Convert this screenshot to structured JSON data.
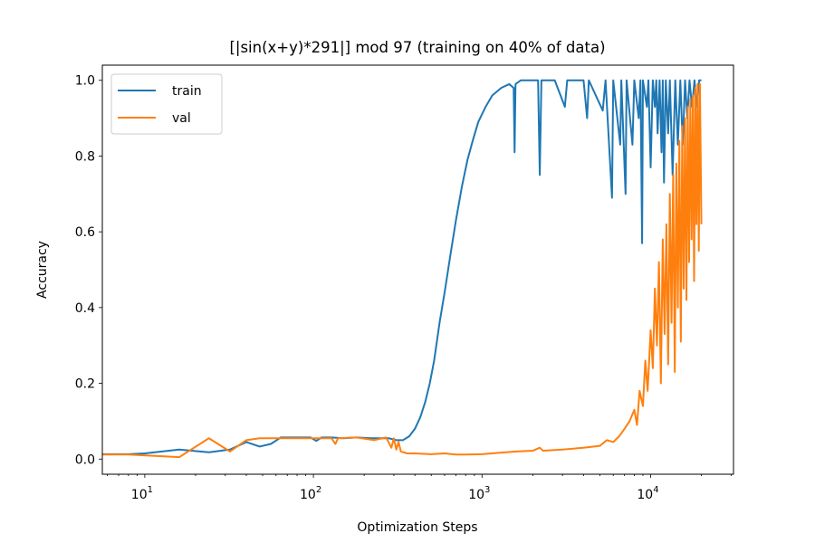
{
  "chart_data": {
    "type": "line",
    "title": "[|sin(x+y)*291|] mod 97 (training on 40% of data)",
    "xlabel": "Optimization Steps",
    "ylabel": "Accuracy",
    "xscale": "log",
    "xlim": [
      5.6,
      31000
    ],
    "ylim": [
      -0.04,
      1.04
    ],
    "grid": false,
    "legend_position": "top-left",
    "x_ticks": [
      {
        "value": 10,
        "base": "10",
        "exp": "1"
      },
      {
        "value": 100,
        "base": "10",
        "exp": "2"
      },
      {
        "value": 1000,
        "base": "10",
        "exp": "3"
      },
      {
        "value": 10000,
        "base": "10",
        "exp": "4"
      }
    ],
    "y_ticks": [
      {
        "value": 0.0,
        "label": "0.0"
      },
      {
        "value": 0.2,
        "label": "0.2"
      },
      {
        "value": 0.4,
        "label": "0.4"
      },
      {
        "value": 0.6,
        "label": "0.6"
      },
      {
        "value": 0.8,
        "label": "0.8"
      },
      {
        "value": 1.0,
        "label": "1.0"
      }
    ],
    "series": [
      {
        "name": "train",
        "color": "#1f77b4",
        "points": [
          [
            5.6,
            0.013
          ],
          [
            8,
            0.013
          ],
          [
            10,
            0.015
          ],
          [
            16,
            0.025
          ],
          [
            24,
            0.018
          ],
          [
            32,
            0.025
          ],
          [
            40,
            0.045
          ],
          [
            48,
            0.033
          ],
          [
            56,
            0.04
          ],
          [
            64,
            0.057
          ],
          [
            80,
            0.057
          ],
          [
            96,
            0.057
          ],
          [
            104,
            0.048
          ],
          [
            112,
            0.057
          ],
          [
            128,
            0.057
          ],
          [
            150,
            0.055
          ],
          [
            180,
            0.057
          ],
          [
            220,
            0.055
          ],
          [
            280,
            0.055
          ],
          [
            310,
            0.05
          ],
          [
            340,
            0.05
          ],
          [
            370,
            0.06
          ],
          [
            400,
            0.08
          ],
          [
            430,
            0.11
          ],
          [
            460,
            0.15
          ],
          [
            490,
            0.2
          ],
          [
            520,
            0.26
          ],
          [
            560,
            0.36
          ],
          [
            600,
            0.44
          ],
          [
            650,
            0.54
          ],
          [
            700,
            0.63
          ],
          [
            760,
            0.72
          ],
          [
            820,
            0.79
          ],
          [
            880,
            0.84
          ],
          [
            950,
            0.89
          ],
          [
            1050,
            0.93
          ],
          [
            1150,
            0.96
          ],
          [
            1300,
            0.98
          ],
          [
            1450,
            0.99
          ],
          [
            1540,
            0.98
          ],
          [
            1560,
            0.81
          ],
          [
            1580,
            0.99
          ],
          [
            1700,
            1.0
          ],
          [
            1900,
            1.0
          ],
          [
            2150,
            1.0
          ],
          [
            2200,
            0.75
          ],
          [
            2250,
            1.0
          ],
          [
            2700,
            1.0
          ],
          [
            3100,
            0.93
          ],
          [
            3200,
            1.0
          ],
          [
            4000,
            1.0
          ],
          [
            4200,
            0.9
          ],
          [
            4300,
            1.0
          ],
          [
            5200,
            0.92
          ],
          [
            5400,
            1.0
          ],
          [
            5900,
            0.69
          ],
          [
            6000,
            1.0
          ],
          [
            6600,
            0.83
          ],
          [
            6700,
            1.0
          ],
          [
            7100,
            0.7
          ],
          [
            7200,
            1.0
          ],
          [
            7800,
            0.83
          ],
          [
            8000,
            1.0
          ],
          [
            8500,
            0.9
          ],
          [
            8700,
            1.0
          ],
          [
            8900,
            0.57
          ],
          [
            9000,
            1.0
          ],
          [
            9500,
            0.93
          ],
          [
            9700,
            1.0
          ],
          [
            10000,
            0.77
          ],
          [
            10300,
            1.0
          ],
          [
            10600,
            0.93
          ],
          [
            10800,
            1.0
          ],
          [
            11000,
            0.86
          ],
          [
            11300,
            1.0
          ],
          [
            11600,
            0.81
          ],
          [
            11800,
            1.0
          ],
          [
            12000,
            0.73
          ],
          [
            12300,
            1.0
          ],
          [
            12700,
            0.86
          ],
          [
            13000,
            1.0
          ],
          [
            13500,
            0.75
          ],
          [
            14000,
            1.0
          ],
          [
            14500,
            0.83
          ],
          [
            15000,
            1.0
          ],
          [
            15500,
            0.83
          ],
          [
            16000,
            1.0
          ],
          [
            16500,
            0.9
          ],
          [
            17000,
            1.0
          ],
          [
            17600,
            0.93
          ],
          [
            18200,
            1.0
          ],
          [
            18800,
            0.93
          ],
          [
            19400,
            1.0
          ],
          [
            20000,
            1.0
          ]
        ]
      },
      {
        "name": "val",
        "color": "#ff7f0e",
        "points": [
          [
            5.6,
            0.012
          ],
          [
            8,
            0.012
          ],
          [
            16,
            0.005
          ],
          [
            24,
            0.055
          ],
          [
            32,
            0.02
          ],
          [
            40,
            0.05
          ],
          [
            48,
            0.055
          ],
          [
            64,
            0.055
          ],
          [
            96,
            0.055
          ],
          [
            128,
            0.055
          ],
          [
            135,
            0.04
          ],
          [
            140,
            0.055
          ],
          [
            180,
            0.057
          ],
          [
            230,
            0.05
          ],
          [
            270,
            0.057
          ],
          [
            290,
            0.03
          ],
          [
            300,
            0.055
          ],
          [
            310,
            0.025
          ],
          [
            320,
            0.045
          ],
          [
            330,
            0.02
          ],
          [
            360,
            0.015
          ],
          [
            400,
            0.015
          ],
          [
            500,
            0.013
          ],
          [
            600,
            0.015
          ],
          [
            700,
            0.012
          ],
          [
            800,
            0.012
          ],
          [
            1000,
            0.013
          ],
          [
            1300,
            0.017
          ],
          [
            1600,
            0.02
          ],
          [
            2000,
            0.022
          ],
          [
            2200,
            0.03
          ],
          [
            2300,
            0.022
          ],
          [
            3000,
            0.025
          ],
          [
            4000,
            0.03
          ],
          [
            5000,
            0.035
          ],
          [
            5500,
            0.05
          ],
          [
            6000,
            0.045
          ],
          [
            6500,
            0.06
          ],
          [
            7000,
            0.08
          ],
          [
            7500,
            0.1
          ],
          [
            8000,
            0.13
          ],
          [
            8300,
            0.09
          ],
          [
            8600,
            0.18
          ],
          [
            9000,
            0.14
          ],
          [
            9300,
            0.26
          ],
          [
            9600,
            0.18
          ],
          [
            10000,
            0.34
          ],
          [
            10300,
            0.24
          ],
          [
            10600,
            0.45
          ],
          [
            10900,
            0.3
          ],
          [
            11200,
            0.52
          ],
          [
            11500,
            0.2
          ],
          [
            11800,
            0.58
          ],
          [
            12100,
            0.33
          ],
          [
            12400,
            0.62
          ],
          [
            12700,
            0.25
          ],
          [
            13000,
            0.7
          ],
          [
            13300,
            0.36
          ],
          [
            13600,
            0.75
          ],
          [
            13900,
            0.23
          ],
          [
            14200,
            0.78
          ],
          [
            14500,
            0.4
          ],
          [
            14800,
            0.84
          ],
          [
            15100,
            0.31
          ],
          [
            15400,
            0.88
          ],
          [
            15700,
            0.45
          ],
          [
            16000,
            0.9
          ],
          [
            16300,
            0.42
          ],
          [
            16600,
            0.93
          ],
          [
            16900,
            0.52
          ],
          [
            17200,
            0.95
          ],
          [
            17500,
            0.58
          ],
          [
            17800,
            0.96
          ],
          [
            18100,
            0.47
          ],
          [
            18400,
            0.98
          ],
          [
            18700,
            0.62
          ],
          [
            19000,
            0.99
          ],
          [
            19300,
            0.55
          ],
          [
            19600,
            0.99
          ],
          [
            20000,
            0.62
          ]
        ]
      }
    ]
  }
}
